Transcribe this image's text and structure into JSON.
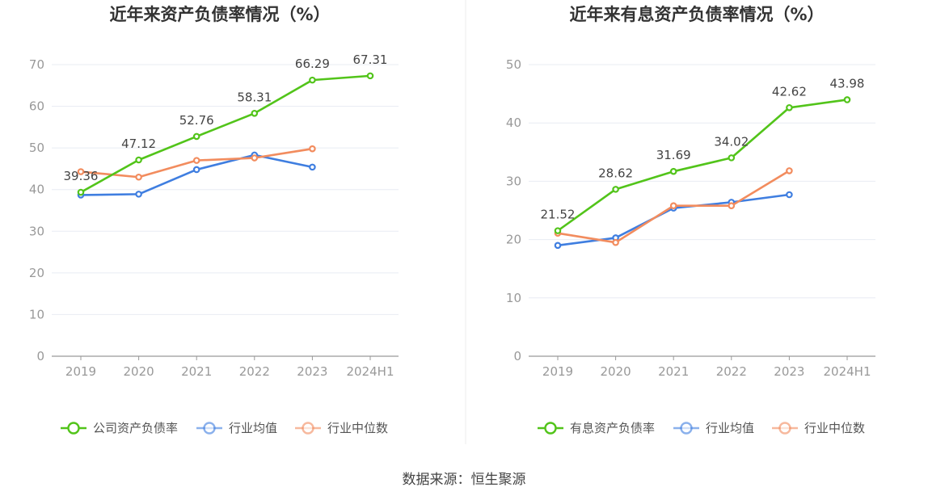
{
  "source": "数据来源：恒生聚源",
  "chart_data": [
    {
      "type": "line",
      "title": "近年来资产负债率情况（%）",
      "categories": [
        "2019",
        "2020",
        "2021",
        "2022",
        "2023",
        "2024H1"
      ],
      "ylim": [
        0,
        70
      ],
      "yticks": [
        0,
        10,
        20,
        30,
        40,
        50,
        60,
        70
      ],
      "grid": true,
      "legend_position": "bottom",
      "series": [
        {
          "name": "公司资产负债率",
          "color": "#52c41a",
          "values": [
            39.36,
            47.12,
            52.76,
            58.31,
            66.29,
            67.31
          ],
          "labels": [
            "39.36",
            "47.12",
            "52.76",
            "58.31",
            "66.29",
            "67.31"
          ]
        },
        {
          "name": "行业均值",
          "color": "#3f7ee0",
          "values": [
            38.7,
            38.9,
            44.8,
            48.3,
            45.4,
            null
          ]
        },
        {
          "name": "行业中位数",
          "color": "#f28c5e",
          "values": [
            44.3,
            43.0,
            47.0,
            47.6,
            49.8,
            null
          ]
        }
      ]
    },
    {
      "type": "line",
      "title": "近年来有息资产负债率情况（%）",
      "categories": [
        "2019",
        "2020",
        "2021",
        "2022",
        "2023",
        "2024H1"
      ],
      "ylim": [
        0,
        50
      ],
      "yticks": [
        0,
        10,
        20,
        30,
        40,
        50
      ],
      "grid": true,
      "legend_position": "bottom",
      "series": [
        {
          "name": "有息资产负债率",
          "color": "#52c41a",
          "values": [
            21.52,
            28.62,
            31.69,
            34.02,
            42.62,
            43.98
          ],
          "labels": [
            "21.52",
            "28.62",
            "31.69",
            "34.02",
            "42.62",
            "43.98"
          ]
        },
        {
          "name": "行业均值",
          "color": "#3f7ee0",
          "values": [
            19.0,
            20.3,
            25.4,
            26.4,
            27.7,
            null
          ]
        },
        {
          "name": "行业中位数",
          "color": "#f28c5e",
          "values": [
            21.1,
            19.5,
            25.8,
            25.8,
            31.8,
            null
          ]
        }
      ]
    }
  ]
}
